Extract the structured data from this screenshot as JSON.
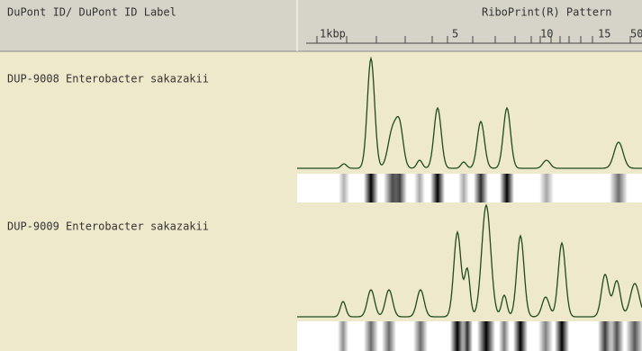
{
  "header": {
    "id_label": "DuPont ID/ DuPont ID Label",
    "pattern_label": "RiboPrint(R) Pattern",
    "scale_labels": [
      "1kbp",
      "5",
      "10",
      "15",
      "50"
    ]
  },
  "rows": [
    {
      "label": "DUP-9008 Enterobacter sakazakii"
    },
    {
      "label": "DUP-9009 Enterobacter sakazakii"
    }
  ]
}
